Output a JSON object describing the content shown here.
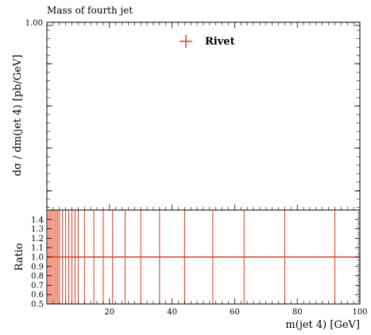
{
  "chart_data": [
    {
      "type": "scatter",
      "title": "Mass of fourth jet",
      "ylabel": "dσ / dm(jet 4) [pb/GeV]",
      "ytick_labels": [
        "1.00"
      ],
      "series": [
        {
          "name": "Rivet",
          "color": "#e8391d",
          "values": []
        }
      ],
      "legend": {
        "placement": "top-right"
      }
    },
    {
      "type": "line",
      "ylabel": "Ratio",
      "xlabel": "m(jet 4) [GeV]",
      "xlim": [
        0,
        100
      ],
      "ylim": [
        0.5,
        1.5
      ],
      "xticks": [
        20,
        40,
        60,
        80,
        100
      ],
      "yticks": [
        0.5,
        0.6,
        0.7,
        0.8,
        0.9,
        1.0,
        1.1,
        1.2,
        1.3,
        1.4
      ],
      "reference_value": 1.0,
      "reference_color": "#e8391d",
      "bin_edges": [
        0.5,
        1,
        1.5,
        2,
        2.5,
        3,
        3.5,
        4,
        5,
        6,
        7,
        8,
        9,
        10,
        12,
        15,
        18,
        21,
        25,
        30,
        36,
        44,
        53,
        63,
        76,
        92
      ]
    }
  ]
}
